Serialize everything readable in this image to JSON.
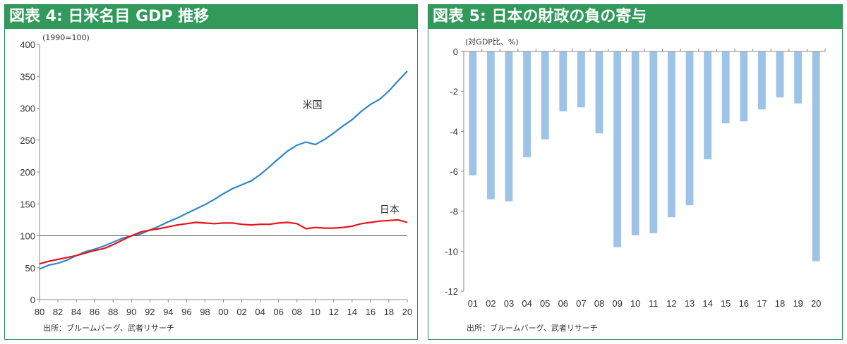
{
  "left_panel": {
    "title": "図表 4: 日米名目 GDP 推移",
    "unit_note": "(1990=100)",
    "source": "出所：ブルームバーグ、武者リサーチ"
  },
  "right_panel": {
    "title": "図表 5: 日本の財政の負の寄与",
    "unit_note": "(対GDP比、%)",
    "source": "出所：ブルームバーグ、武者リサーチ"
  },
  "colors": {
    "header_bg": "#319a5a",
    "us_line": "#2f86c8",
    "jp_line": "#e8141c",
    "bar": "#9dc3e6",
    "ref_line": "#555555"
  },
  "chart_data": [
    {
      "type": "line",
      "title": "図表 4: 日米名目 GDP 推移",
      "ylabel": "(1990=100)",
      "xlabel": "",
      "x_tick_labels": [
        "80",
        "82",
        "84",
        "86",
        "88",
        "90",
        "92",
        "94",
        "96",
        "98",
        "00",
        "02",
        "04",
        "06",
        "08",
        "10",
        "12",
        "14",
        "16",
        "18",
        "20"
      ],
      "xlim": [
        1980,
        2020
      ],
      "ylim": [
        0,
        400
      ],
      "y_ticks": [
        0,
        50,
        100,
        150,
        200,
        250,
        300,
        350,
        400
      ],
      "reference_line": 100,
      "grid": false,
      "x": [
        1980,
        1981,
        1982,
        1983,
        1984,
        1985,
        1986,
        1987,
        1988,
        1989,
        1990,
        1991,
        1992,
        1993,
        1994,
        1995,
        1996,
        1997,
        1998,
        1999,
        2000,
        2001,
        2002,
        2003,
        2004,
        2005,
        2006,
        2007,
        2008,
        2009,
        2010,
        2011,
        2012,
        2013,
        2014,
        2015,
        2016,
        2017,
        2018,
        2019,
        2020
      ],
      "series": [
        {
          "name": "米国",
          "values": [
            48,
            54,
            57,
            62,
            69,
            75,
            79,
            84,
            90,
            96,
            100,
            103,
            109,
            115,
            122,
            128,
            135,
            142,
            149,
            157,
            166,
            174,
            180,
            186,
            196,
            208,
            221,
            233,
            242,
            247,
            243,
            251,
            261,
            272,
            282,
            295,
            306,
            314,
            327,
            343,
            358
          ]
        },
        {
          "name": "日本",
          "values": [
            56,
            60,
            63,
            66,
            69,
            73,
            77,
            80,
            86,
            93,
            100,
            106,
            109,
            111,
            114,
            117,
            119,
            121,
            120,
            119,
            120,
            120,
            118,
            117,
            118,
            118,
            120,
            121,
            119,
            111,
            113,
            112,
            112,
            113,
            115,
            119,
            121,
            123,
            124,
            125,
            121
          ]
        }
      ]
    },
    {
      "type": "bar",
      "title": "図表 5: 日本の財政の負の寄与",
      "ylabel": "(対GDP比、%)",
      "xlabel": "",
      "categories": [
        "01",
        "02",
        "03",
        "04",
        "05",
        "06",
        "07",
        "08",
        "09",
        "10",
        "11",
        "12",
        "13",
        "14",
        "15",
        "16",
        "17",
        "18",
        "19",
        "20"
      ],
      "values": [
        -6.2,
        -7.4,
        -7.5,
        -5.3,
        -4.4,
        -3.0,
        -2.8,
        -4.1,
        -9.8,
        -9.2,
        -9.1,
        -8.3,
        -7.7,
        -5.4,
        -3.6,
        -3.5,
        -2.9,
        -2.3,
        -2.6,
        -10.5
      ],
      "ylim": [
        -12,
        0
      ],
      "y_ticks": [
        0,
        -2,
        -4,
        -6,
        -8,
        -10,
        -12
      ],
      "grid": false,
      "series": [
        {
          "values": [
            -6.2,
            -7.4,
            -7.5,
            -5.3,
            -4.4,
            -3.0,
            -2.8,
            -4.1,
            -9.8,
            -9.2,
            -9.1,
            -8.3,
            -7.7,
            -5.4,
            -3.6,
            -3.5,
            -2.9,
            -2.3,
            -2.6,
            -10.5
          ]
        }
      ]
    }
  ]
}
